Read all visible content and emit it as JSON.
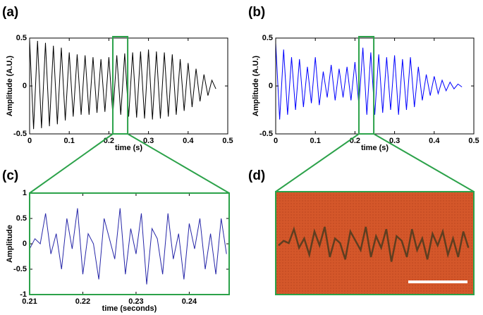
{
  "chart_data": [
    {
      "type": "line",
      "label": "(a)",
      "ylabel": "Amplitude (A.U.)",
      "xlabel": "time (s)",
      "color": "#000000",
      "x": [
        0,
        0.01,
        0.02,
        0.03,
        0.04,
        0.05,
        0.06,
        0.07,
        0.08,
        0.09,
        0.1,
        0.11,
        0.12,
        0.13,
        0.14,
        0.15,
        0.16,
        0.17,
        0.18,
        0.19,
        0.2,
        0.21,
        0.22,
        0.23,
        0.24,
        0.25,
        0.26,
        0.27,
        0.28,
        0.29,
        0.3,
        0.31,
        0.32,
        0.33,
        0.34,
        0.35,
        0.36,
        0.37,
        0.38,
        0.39,
        0.4,
        0.41,
        0.42,
        0.43,
        0.44,
        0.45,
        0.46,
        0.47
      ],
      "values": [
        0.48,
        -0.45,
        0.47,
        -0.44,
        0.45,
        -0.42,
        0.42,
        -0.4,
        0.4,
        -0.36,
        0.35,
        -0.32,
        0.33,
        -0.3,
        0.32,
        -0.3,
        0.3,
        -0.28,
        0.28,
        -0.27,
        0.3,
        -0.3,
        0.32,
        -0.3,
        0.34,
        -0.32,
        0.35,
        -0.33,
        0.36,
        -0.34,
        0.38,
        -0.35,
        0.36,
        -0.34,
        0.35,
        -0.32,
        0.33,
        -0.3,
        0.28,
        -0.26,
        0.24,
        -0.22,
        0.18,
        -0.16,
        0.12,
        -0.1,
        0.06,
        -0.03
      ],
      "xlim": [
        0,
        0.5
      ],
      "xticks": [
        0,
        0.1,
        0.2,
        0.3,
        0.4,
        0.5
      ],
      "ylim": [
        -0.5,
        0.5
      ],
      "yticks": [
        -0.5,
        0,
        0.5
      ]
    },
    {
      "type": "line",
      "label": "(b)",
      "ylabel": "Amplitude (A.U.)",
      "xlabel": "time (s)",
      "color": "#0000ff",
      "x": [
        0,
        0.01,
        0.02,
        0.03,
        0.04,
        0.05,
        0.06,
        0.07,
        0.08,
        0.09,
        0.1,
        0.11,
        0.12,
        0.13,
        0.14,
        0.15,
        0.16,
        0.17,
        0.18,
        0.19,
        0.2,
        0.21,
        0.22,
        0.23,
        0.24,
        0.25,
        0.26,
        0.27,
        0.28,
        0.29,
        0.3,
        0.31,
        0.32,
        0.33,
        0.34,
        0.35,
        0.36,
        0.37,
        0.38,
        0.39,
        0.4,
        0.41,
        0.42,
        0.43,
        0.44,
        0.45,
        0.46,
        0.47
      ],
      "values": [
        0.45,
        -0.35,
        0.38,
        -0.3,
        0.3,
        -0.25,
        0.28,
        -0.22,
        0.2,
        -0.18,
        0.3,
        -0.2,
        0.15,
        -0.12,
        0.22,
        -0.15,
        0.18,
        -0.12,
        0.2,
        -0.15,
        0.25,
        -0.2,
        0.4,
        -0.3,
        0.35,
        -0.3,
        0.33,
        -0.28,
        0.3,
        -0.25,
        0.32,
        -0.3,
        0.28,
        -0.25,
        0.3,
        -0.22,
        0.2,
        -0.15,
        0.12,
        -0.1,
        0.1,
        -0.08,
        0.06,
        -0.05,
        0.04,
        -0.03,
        0.02,
        -0.01
      ],
      "xlim": [
        0,
        0.5
      ],
      "xticks": [
        0,
        0.1,
        0.2,
        0.3,
        0.4,
        0.5
      ],
      "ylim": [
        -0.5,
        0.5
      ],
      "yticks": [
        -0.5,
        0,
        0.5
      ]
    },
    {
      "type": "line",
      "label": "(c)",
      "ylabel": "Amplitude",
      "xlabel": "time (seconds)",
      "color": "#2626a8",
      "x": [
        0.21,
        0.211,
        0.212,
        0.213,
        0.214,
        0.215,
        0.216,
        0.217,
        0.218,
        0.219,
        0.22,
        0.221,
        0.222,
        0.223,
        0.224,
        0.225,
        0.226,
        0.227,
        0.228,
        0.229,
        0.23,
        0.231,
        0.232,
        0.233,
        0.234,
        0.235,
        0.236,
        0.237,
        0.238,
        0.239,
        0.24,
        0.241,
        0.242,
        0.243,
        0.244,
        0.245,
        0.246,
        0.247
      ],
      "values": [
        -0.1,
        0.1,
        0.0,
        0.6,
        -0.2,
        0.2,
        -0.5,
        0.5,
        -0.1,
        0.7,
        -0.6,
        0.2,
        0.0,
        -0.7,
        0.5,
        0.1,
        -0.3,
        0.7,
        -0.6,
        0.3,
        -0.2,
        0.6,
        -0.8,
        0.3,
        0.1,
        -0.6,
        0.6,
        -0.3,
        0.2,
        -0.7,
        0.4,
        -0.1,
        0.5,
        -0.5,
        0.2,
        -0.6,
        0.5,
        -0.2
      ],
      "xlim": [
        0.21,
        0.2475
      ],
      "xticks": [
        0.21,
        0.22,
        0.23,
        0.24
      ],
      "ylim": [
        -1,
        1
      ],
      "yticks": [
        -1,
        -0.5,
        0,
        0.5,
        1
      ]
    },
    {
      "type": "image",
      "label": "(d)"
    }
  ]
}
